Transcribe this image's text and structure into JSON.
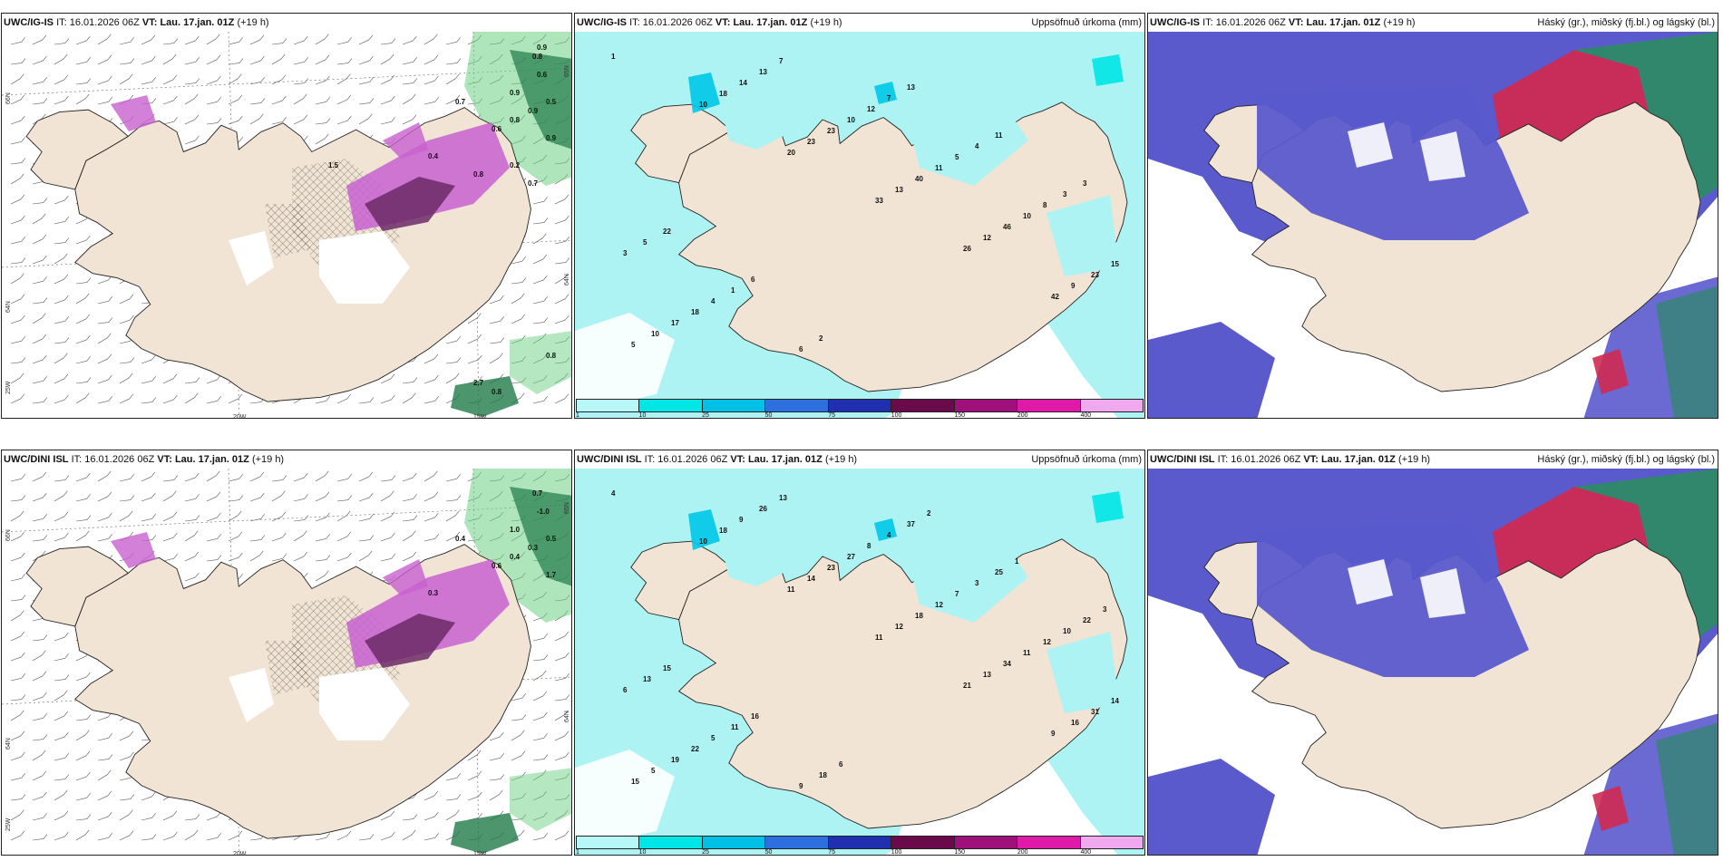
{
  "colors": {
    "land": "#f1e4d4",
    "ice_snow": "#aef3f3",
    "precip_green": "#6ccf84",
    "precip_darkgreen": "#1f7a48",
    "precip_purple": "#c860d0",
    "precip_darkpurple": "#6b2a66",
    "cloud_low": "#5a5acd",
    "cloud_mid": "#cf2a52",
    "cloud_high": "#2e8a66"
  },
  "panels": [
    {
      "model": "UWC/IG-IS",
      "it_label": "IT:",
      "it_value": "16.01.2026 06Z",
      "vt_label": "VT:",
      "vt_value": "Lau. 17.jan. 01Z",
      "lead": "(+19 h)",
      "right_title": "",
      "kind": "precip-wind",
      "labels": [
        "0.8",
        "0.6",
        "0.9",
        "0.5",
        "0.7",
        "0.9",
        "0.8",
        "0.6",
        "0.9",
        "0.4",
        "0.8",
        "0.2",
        "0.7",
        "1.5",
        "0.8",
        "2.7",
        "0.8",
        "0.9"
      ],
      "axis": {
        "lat_top": "66N",
        "lat_mid": "64N",
        "lon_left": "20W",
        "lon_right": "15W",
        "corner": "25W",
        "right_top": "65N",
        "right_mid": "64N"
      }
    },
    {
      "model": "UWC/IG-IS",
      "it_label": "IT:",
      "it_value": "16.01.2026 06Z",
      "vt_label": "VT:",
      "vt_value": "Lau. 17.jan. 01Z",
      "lead": "(+19 h)",
      "right_title": "Uppsöfnuð úrkoma (mm)",
      "kind": "accum",
      "labels": [
        "1",
        "10",
        "20",
        "33",
        "26",
        "42",
        "5",
        "18",
        "23",
        "13",
        "12",
        "9",
        "10",
        "14",
        "23",
        "40",
        "46",
        "23",
        "17",
        "13",
        "10",
        "11",
        "10",
        "15",
        "18",
        "7",
        "12",
        "5",
        "8",
        "3",
        "4",
        "6",
        "7",
        "4",
        "3",
        "5",
        "1",
        "2",
        "13",
        "11",
        "3",
        "22",
        "6"
      ],
      "colorbar": [
        "1",
        "10",
        "25",
        "50",
        "75",
        "100",
        "150",
        "200",
        "400"
      ]
    },
    {
      "model": "UWC/IG-IS",
      "it_label": "IT:",
      "it_value": "16.01.2026 06Z",
      "vt_label": "VT:",
      "vt_value": "Lau. 17.jan. 01Z",
      "lead": "(+19 h)",
      "right_title": "Háský (gr.), miðský (fj.bl.) og lágský (bl.)",
      "kind": "cloud"
    },
    {
      "model": "UWC/DINI ISL",
      "it_label": "IT:",
      "it_value": "16.01.2026 06Z",
      "vt_label": "VT:",
      "vt_value": "Lau. 17.jan. 01Z",
      "lead": "(+19 h)",
      "right_title": "",
      "kind": "precip-wind",
      "labels": [
        "0.7",
        "-1.0",
        "1.0",
        "0.5",
        "0.4",
        "0.3",
        "0.4",
        "0.6",
        "1.7",
        "0.3"
      ],
      "axis": {
        "lat_top": "66N",
        "lat_mid": "64N",
        "lon_left": "20W",
        "lon_right": "15W",
        "corner": "25W",
        "right_top": "65N",
        "right_mid": "64N"
      }
    },
    {
      "model": "UWC/DINI ISL",
      "it_label": "IT:",
      "it_value": "16.01.2026 06Z",
      "vt_label": "VT:",
      "vt_value": "Lau. 17.jan. 01Z",
      "lead": "(+19 h)",
      "right_title": "Uppsöfnuð úrkoma (mm)",
      "kind": "accum",
      "labels": [
        "4",
        "10",
        "11",
        "11",
        "21",
        "9",
        "15",
        "18",
        "14",
        "12",
        "13",
        "16",
        "5",
        "9",
        "23",
        "18",
        "34",
        "31",
        "19",
        "26",
        "27",
        "12",
        "11",
        "14",
        "22",
        "13",
        "8",
        "7",
        "12",
        "6",
        "5",
        "9",
        "4",
        "3",
        "10",
        "13",
        "11",
        "18",
        "37",
        "25",
        "22",
        "15",
        "16",
        "6",
        "2",
        "1",
        "3"
      ],
      "colorbar": [
        "1",
        "10",
        "25",
        "50",
        "75",
        "100",
        "150",
        "200",
        "400"
      ]
    },
    {
      "model": "UWC/DINI ISL",
      "it_label": "IT:",
      "it_value": "16.01.2026 06Z",
      "vt_label": "VT:",
      "vt_value": "Lau. 17.jan. 01Z",
      "lead": "(+19 h)",
      "right_title": "Háský (gr.), miðský (fj.bl.) og lágský (bl.)",
      "kind": "cloud"
    }
  ],
  "colorbar_colors": [
    "#b8f7f7",
    "#00e6e6",
    "#00c0e6",
    "#2e6fe0",
    "#1f2fb0",
    "#6a0a4a",
    "#a0107a",
    "#e01aa8",
    "#f0a8ee"
  ]
}
